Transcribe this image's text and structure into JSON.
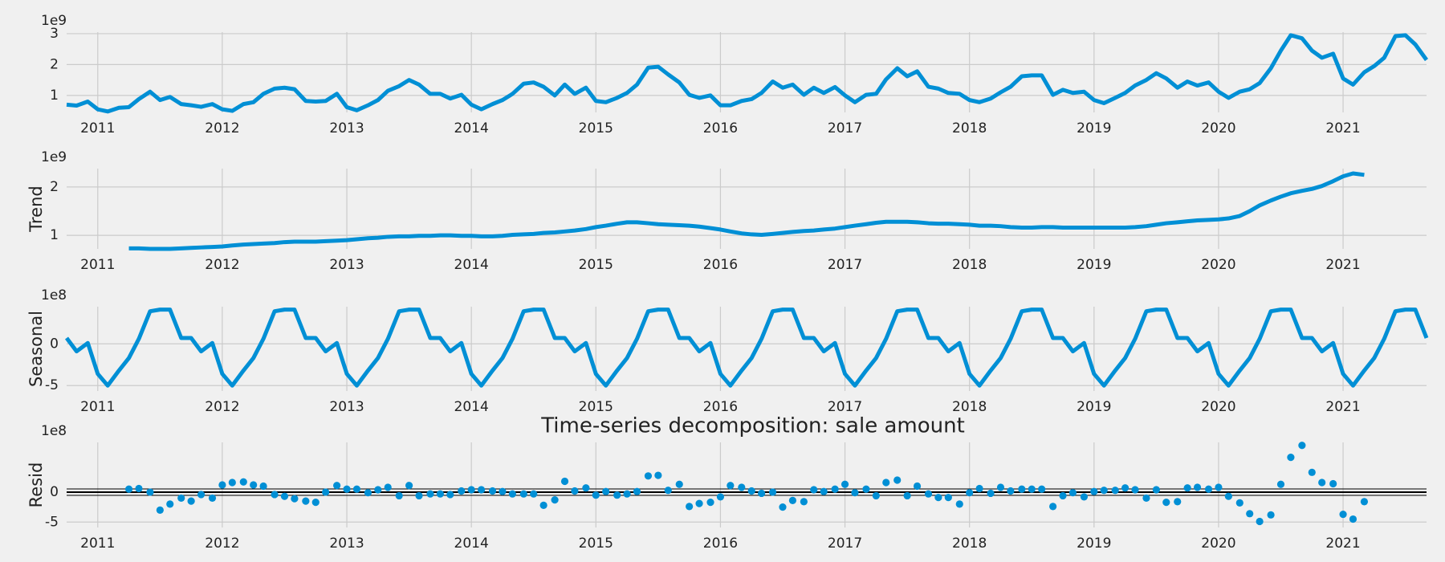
{
  "chart_data": [
    {
      "type": "line",
      "offset_label": "1e9",
      "color": "#008fd5",
      "grid": true,
      "xlim": [
        2010.75,
        2021.67
      ],
      "xticks": [
        2011,
        2012,
        2013,
        2014,
        2015,
        2016,
        2017,
        2018,
        2019,
        2020,
        2021
      ],
      "ylim": [
        0.45,
        3.05
      ],
      "yticks": [
        1,
        2,
        3
      ],
      "x": [
        2010.75,
        2010.83,
        2010.92,
        2011,
        2011.08,
        2011.17,
        2011.25,
        2011.33,
        2011.42,
        2011.5,
        2011.58,
        2011.67,
        2011.75,
        2011.83,
        2011.92,
        2012,
        2012.08,
        2012.17,
        2012.25,
        2012.33,
        2012.42,
        2012.5,
        2012.58,
        2012.67,
        2012.75,
        2012.83,
        2012.92,
        2013,
        2013.08,
        2013.17,
        2013.25,
        2013.33,
        2013.42,
        2013.5,
        2013.58,
        2013.67,
        2013.75,
        2013.83,
        2013.92,
        2014,
        2014.08,
        2014.17,
        2014.25,
        2014.33,
        2014.42,
        2014.5,
        2014.58,
        2014.67,
        2014.75,
        2014.83,
        2014.92,
        2015,
        2015.08,
        2015.17,
        2015.25,
        2015.33,
        2015.42,
        2015.5,
        2015.58,
        2015.67,
        2015.75,
        2015.83,
        2015.92,
        2016,
        2016.08,
        2016.17,
        2016.25,
        2016.33,
        2016.42,
        2016.5,
        2016.58,
        2016.67,
        2016.75,
        2016.83,
        2016.92,
        2017,
        2017.08,
        2017.17,
        2017.25,
        2017.33,
        2017.42,
        2017.5,
        2017.58,
        2017.67,
        2017.75,
        2017.83,
        2017.92,
        2018,
        2018.08,
        2018.17,
        2018.25,
        2018.33,
        2018.42,
        2018.5,
        2018.58,
        2018.67,
        2018.75,
        2018.83,
        2018.92,
        2019,
        2019.08,
        2019.17,
        2019.25,
        2019.33,
        2019.42,
        2019.5,
        2019.58,
        2019.67,
        2019.75,
        2019.83,
        2019.92,
        2020,
        2020.08,
        2020.17,
        2020.25,
        2020.33,
        2020.42,
        2020.5,
        2020.58,
        2020.67,
        2020.75,
        2020.83,
        2020.92,
        2021,
        2021.08,
        2021.17,
        2021.25,
        2021.33,
        2021.42,
        2021.5,
        2021.58,
        2021.67
      ],
      "values": [
        0.7,
        0.67,
        0.8,
        0.55,
        0.48,
        0.6,
        0.62,
        0.88,
        1.12,
        0.85,
        0.95,
        0.72,
        0.68,
        0.63,
        0.72,
        0.55,
        0.5,
        0.72,
        0.78,
        1.05,
        1.22,
        1.25,
        1.2,
        0.82,
        0.8,
        0.82,
        1.05,
        0.62,
        0.52,
        0.68,
        0.85,
        1.15,
        1.3,
        1.5,
        1.35,
        1.05,
        1.05,
        0.9,
        1.02,
        0.7,
        0.55,
        0.72,
        0.85,
        1.05,
        1.38,
        1.42,
        1.28,
        1.0,
        1.35,
        1.05,
        1.25,
        0.82,
        0.78,
        0.92,
        1.08,
        1.35,
        1.9,
        1.93,
        1.68,
        1.42,
        1.02,
        0.92,
        1.0,
        0.68,
        0.68,
        0.82,
        0.88,
        1.08,
        1.45,
        1.25,
        1.35,
        1.02,
        1.25,
        1.08,
        1.27,
        1.0,
        0.78,
        1.02,
        1.05,
        1.52,
        1.88,
        1.62,
        1.78,
        1.28,
        1.22,
        1.08,
        1.05,
        0.85,
        0.78,
        0.9,
        1.1,
        1.28,
        1.62,
        1.65,
        1.65,
        1.02,
        1.18,
        1.08,
        1.12,
        0.85,
        0.75,
        0.92,
        1.08,
        1.32,
        1.5,
        1.72,
        1.55,
        1.25,
        1.45,
        1.32,
        1.42,
        1.12,
        0.92,
        1.12,
        1.2,
        1.4,
        1.88,
        2.45,
        2.95,
        2.85,
        2.45,
        2.22,
        2.35,
        1.55,
        1.35,
        1.75,
        1.95,
        2.22,
        2.92,
        2.95,
        2.65,
        2.15
      ]
    },
    {
      "type": "line",
      "ylabel": "Trend",
      "offset_label": "1e9",
      "color": "#008fd5",
      "grid": true,
      "xlim": [
        2010.75,
        2021.67
      ],
      "xticks": [
        2011,
        2012,
        2013,
        2014,
        2015,
        2016,
        2017,
        2018,
        2019,
        2020,
        2021
      ],
      "ylim": [
        0.72,
        2.38
      ],
      "yticks": [
        1,
        2
      ],
      "x": [
        2010.75,
        2010.83,
        2010.92,
        2011,
        2011.08,
        2011.17,
        2011.25,
        2011.33,
        2011.42,
        2011.5,
        2011.58,
        2011.67,
        2011.75,
        2011.83,
        2011.92,
        2012,
        2012.08,
        2012.17,
        2012.25,
        2012.33,
        2012.42,
        2012.5,
        2012.58,
        2012.67,
        2012.75,
        2012.83,
        2012.92,
        2013,
        2013.08,
        2013.17,
        2013.25,
        2013.33,
        2013.42,
        2013.5,
        2013.58,
        2013.67,
        2013.75,
        2013.83,
        2013.92,
        2014,
        2014.08,
        2014.17,
        2014.25,
        2014.33,
        2014.42,
        2014.5,
        2014.58,
        2014.67,
        2014.75,
        2014.83,
        2014.92,
        2015,
        2015.08,
        2015.17,
        2015.25,
        2015.33,
        2015.42,
        2015.5,
        2015.58,
        2015.67,
        2015.75,
        2015.83,
        2015.92,
        2016,
        2016.08,
        2016.17,
        2016.25,
        2016.33,
        2016.42,
        2016.5,
        2016.58,
        2016.67,
        2016.75,
        2016.83,
        2016.92,
        2017,
        2017.08,
        2017.17,
        2017.25,
        2017.33,
        2017.42,
        2017.5,
        2017.58,
        2017.67,
        2017.75,
        2017.83,
        2017.92,
        2018,
        2018.08,
        2018.17,
        2018.25,
        2018.33,
        2018.42,
        2018.5,
        2018.58,
        2018.67,
        2018.75,
        2018.83,
        2018.92,
        2019,
        2019.08,
        2019.17,
        2019.25,
        2019.33,
        2019.42,
        2019.5,
        2019.58,
        2019.67,
        2019.75,
        2019.83,
        2019.92,
        2020,
        2020.08,
        2020.17,
        2020.25,
        2020.33,
        2020.42,
        2020.5,
        2020.58,
        2020.67,
        2020.75,
        2020.83,
        2020.92,
        2021,
        2021.08,
        2021.17,
        2021.25,
        2021.33,
        2021.42,
        2021.5,
        2021.58,
        2021.67
      ],
      "values": [
        null,
        null,
        null,
        null,
        null,
        null,
        0.73,
        0.73,
        0.72,
        0.72,
        0.72,
        0.73,
        0.74,
        0.75,
        0.76,
        0.77,
        0.79,
        0.81,
        0.82,
        0.83,
        0.84,
        0.86,
        0.87,
        0.87,
        0.87,
        0.88,
        0.89,
        0.9,
        0.92,
        0.94,
        0.95,
        0.97,
        0.98,
        0.98,
        0.99,
        0.99,
        1.0,
        1.0,
        0.99,
        0.99,
        0.98,
        0.98,
        0.99,
        1.01,
        1.02,
        1.03,
        1.05,
        1.06,
        1.08,
        1.1,
        1.13,
        1.17,
        1.2,
        1.24,
        1.27,
        1.27,
        1.25,
        1.23,
        1.22,
        1.21,
        1.2,
        1.18,
        1.15,
        1.12,
        1.08,
        1.04,
        1.02,
        1.01,
        1.03,
        1.05,
        1.07,
        1.09,
        1.1,
        1.12,
        1.14,
        1.17,
        1.2,
        1.23,
        1.26,
        1.28,
        1.28,
        1.28,
        1.27,
        1.25,
        1.24,
        1.24,
        1.23,
        1.22,
        1.2,
        1.2,
        1.19,
        1.17,
        1.16,
        1.16,
        1.17,
        1.17,
        1.16,
        1.16,
        1.16,
        1.16,
        1.16,
        1.16,
        1.16,
        1.17,
        1.19,
        1.22,
        1.25,
        1.27,
        1.29,
        1.31,
        1.32,
        1.33,
        1.35,
        1.4,
        1.5,
        1.62,
        1.72,
        1.8,
        1.87,
        1.92,
        1.96,
        2.02,
        2.12,
        2.22,
        2.28,
        2.25,
        null,
        null,
        null,
        null,
        null,
        null
      ]
    },
    {
      "type": "line",
      "ylabel": "Seasonal",
      "offset_label": "1e8",
      "color": "#008fd5",
      "grid": true,
      "xlim": [
        2010.75,
        2021.67
      ],
      "xticks": [
        2011,
        2012,
        2013,
        2014,
        2015,
        2016,
        2017,
        2018,
        2019,
        2020,
        2021
      ],
      "ylim": [
        -5.65,
        4.45
      ],
      "yticks": [
        -5,
        0
      ],
      "x": [
        2010.75,
        2010.83,
        2010.92,
        2011,
        2011.08,
        2011.17,
        2011.25,
        2011.33,
        2011.42,
        2011.5,
        2011.58,
        2011.67,
        2011.75,
        2011.83,
        2011.92,
        2012,
        2012.08,
        2012.17,
        2012.25,
        2012.33,
        2012.42,
        2012.5,
        2012.58,
        2012.67,
        2012.75,
        2012.83,
        2012.92,
        2013,
        2013.08,
        2013.17,
        2013.25,
        2013.33,
        2013.42,
        2013.5,
        2013.58,
        2013.67,
        2013.75,
        2013.83,
        2013.92,
        2014,
        2014.08,
        2014.17,
        2014.25,
        2014.33,
        2014.42,
        2014.5,
        2014.58,
        2014.67,
        2014.75,
        2014.83,
        2014.92,
        2015,
        2015.08,
        2015.17,
        2015.25,
        2015.33,
        2015.42,
        2015.5,
        2015.58,
        2015.67,
        2015.75,
        2015.83,
        2015.92,
        2016,
        2016.08,
        2016.17,
        2016.25,
        2016.33,
        2016.42,
        2016.5,
        2016.58,
        2016.67,
        2016.75,
        2016.83,
        2016.92,
        2017,
        2017.08,
        2017.17,
        2017.25,
        2017.33,
        2017.42,
        2017.5,
        2017.58,
        2017.67,
        2017.75,
        2017.83,
        2017.92,
        2018,
        2018.08,
        2018.17,
        2018.25,
        2018.33,
        2018.42,
        2018.5,
        2018.58,
        2018.67,
        2018.75,
        2018.83,
        2018.92,
        2019,
        2019.08,
        2019.17,
        2019.25,
        2019.33,
        2019.42,
        2019.5,
        2019.58,
        2019.67,
        2019.75,
        2019.83,
        2019.92,
        2020,
        2020.08,
        2020.17,
        2020.25,
        2020.33,
        2020.42,
        2020.5,
        2020.58,
        2020.67,
        2020.75,
        2020.83,
        2020.92,
        2021,
        2021.08,
        2021.17,
        2021.25,
        2021.33,
        2021.42,
        2021.5,
        2021.58,
        2021.67
      ],
      "values": [
        0.7,
        -0.9,
        0.1,
        -3.6,
        -5,
        -3.2,
        -1.7,
        0.6,
        3.9,
        4.1,
        4.1,
        0.7,
        0.7,
        -0.9,
        0.1,
        -3.6,
        -5,
        -3.2,
        -1.7,
        0.6,
        3.9,
        4.1,
        4.1,
        0.7,
        0.7,
        -0.9,
        0.1,
        -3.6,
        -5,
        -3.2,
        -1.7,
        0.6,
        3.9,
        4.1,
        4.1,
        0.7,
        0.7,
        -0.9,
        0.1,
        -3.6,
        -5,
        -3.2,
        -1.7,
        0.6,
        3.9,
        4.1,
        4.1,
        0.7,
        0.7,
        -0.9,
        0.1,
        -3.6,
        -5,
        -3.2,
        -1.7,
        0.6,
        3.9,
        4.1,
        4.1,
        0.7,
        0.7,
        -0.9,
        0.1,
        -3.6,
        -5,
        -3.2,
        -1.7,
        0.6,
        3.9,
        4.1,
        4.1,
        0.7,
        0.7,
        -0.9,
        0.1,
        -3.6,
        -5,
        -3.2,
        -1.7,
        0.6,
        3.9,
        4.1,
        4.1,
        0.7,
        0.7,
        -0.9,
        0.1,
        -3.6,
        -5,
        -3.2,
        -1.7,
        0.6,
        3.9,
        4.1,
        4.1,
        0.7,
        0.7,
        -0.9,
        0.1,
        -3.6,
        -5,
        -3.2,
        -1.7,
        0.6,
        3.9,
        4.1,
        4.1,
        0.7,
        0.7,
        -0.9,
        0.1,
        -3.6,
        -5,
        -3.2,
        -1.7,
        0.6,
        3.9,
        4.1,
        4.1,
        0.7,
        0.7,
        -0.9,
        0.1,
        -3.6,
        -5,
        -3.2,
        -1.7,
        0.6,
        3.9,
        4.1,
        4.1,
        0.7
      ]
    },
    {
      "type": "scatter",
      "title": "Time-series decomposition: sale amount",
      "ylabel": "Resid",
      "offset_label": "1e8",
      "color": "#008fd5",
      "grid": true,
      "zero_line": true,
      "xlim": [
        2010.75,
        2021.67
      ],
      "xticks": [
        2011,
        2012,
        2013,
        2014,
        2015,
        2016,
        2017,
        2018,
        2019,
        2020,
        2021
      ],
      "ylim": [
        -5.9,
        8.3
      ],
      "yticks": [
        -5,
        0
      ],
      "x": [
        2010.75,
        2010.83,
        2010.92,
        2011,
        2011.08,
        2011.17,
        2011.25,
        2011.33,
        2011.42,
        2011.5,
        2011.58,
        2011.67,
        2011.75,
        2011.83,
        2011.92,
        2012,
        2012.08,
        2012.17,
        2012.25,
        2012.33,
        2012.42,
        2012.5,
        2012.58,
        2012.67,
        2012.75,
        2012.83,
        2012.92,
        2013,
        2013.08,
        2013.17,
        2013.25,
        2013.33,
        2013.42,
        2013.5,
        2013.58,
        2013.67,
        2013.75,
        2013.83,
        2013.92,
        2014,
        2014.08,
        2014.17,
        2014.25,
        2014.33,
        2014.42,
        2014.5,
        2014.58,
        2014.67,
        2014.75,
        2014.83,
        2014.92,
        2015,
        2015.08,
        2015.17,
        2015.25,
        2015.33,
        2015.42,
        2015.5,
        2015.58,
        2015.67,
        2015.75,
        2015.83,
        2015.92,
        2016,
        2016.08,
        2016.17,
        2016.25,
        2016.33,
        2016.42,
        2016.5,
        2016.58,
        2016.67,
        2016.75,
        2016.83,
        2016.92,
        2017,
        2017.08,
        2017.17,
        2017.25,
        2017.33,
        2017.42,
        2017.5,
        2017.58,
        2017.67,
        2017.75,
        2017.83,
        2017.92,
        2018,
        2018.08,
        2018.17,
        2018.25,
        2018.33,
        2018.42,
        2018.5,
        2018.58,
        2018.67,
        2018.75,
        2018.83,
        2018.92,
        2019,
        2019.08,
        2019.17,
        2019.25,
        2019.33,
        2019.42,
        2019.5,
        2019.58,
        2019.67,
        2019.75,
        2019.83,
        2019.92,
        2020,
        2020.08,
        2020.17,
        2020.25,
        2020.33,
        2020.42,
        2020.5,
        2020.58,
        2020.67,
        2020.75,
        2020.83,
        2020.92,
        2021,
        2021.08,
        2021.17,
        2021.25,
        2021.33,
        2021.42,
        2021.5,
        2021.58,
        2021.67
      ],
      "values": [
        null,
        null,
        null,
        null,
        null,
        null,
        0.5,
        0.6,
        0.0,
        -3.0,
        -2.0,
        -1.0,
        -1.5,
        -0.4,
        -1.0,
        1.2,
        1.6,
        1.7,
        1.2,
        1.0,
        -0.4,
        -0.7,
        -1.1,
        -1.5,
        -1.7,
        0.0,
        1.1,
        0.5,
        0.5,
        -0.1,
        0.4,
        0.8,
        -0.6,
        1.1,
        -0.6,
        -0.3,
        -0.3,
        -0.4,
        0.2,
        0.4,
        0.4,
        0.2,
        0.1,
        -0.3,
        -0.3,
        -0.3,
        -2.2,
        -1.3,
        1.8,
        0.2,
        0.7,
        -0.5,
        0.1,
        -0.5,
        -0.3,
        0.1,
        2.7,
        2.8,
        0.3,
        1.3,
        -2.4,
        -1.9,
        -1.7,
        -0.8,
        1.1,
        0.8,
        0.2,
        -0.2,
        0.0,
        -2.5,
        -1.4,
        -1.6,
        0.4,
        0.1,
        0.5,
        1.3,
        -0.1,
        0.5,
        -0.6,
        1.6,
        2.0,
        -0.6,
        1.0,
        -0.3,
        -0.9,
        -0.9,
        -2.0,
        -0.1,
        0.6,
        -0.2,
        0.8,
        0.2,
        0.5,
        0.5,
        0.5,
        -2.4,
        -0.6,
        -0.1,
        -0.8,
        0.1,
        0.3,
        0.3,
        0.7,
        0.4,
        -1.0,
        0.4,
        -1.7,
        -1.6,
        0.7,
        0.8,
        0.5,
        0.8,
        -0.7,
        -1.8,
        -3.6,
        -4.9,
        -3.8,
        1.3,
        5.8,
        7.8,
        3.3,
        1.6,
        1.4,
        -3.7,
        -4.5,
        -1.6,
        null,
        null,
        null,
        null,
        null,
        null
      ]
    }
  ]
}
